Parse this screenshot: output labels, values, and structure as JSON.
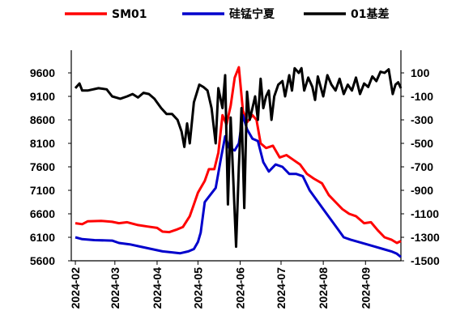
{
  "chart_data": {
    "type": "line",
    "legend_position": "top",
    "x_range": [
      "2024-01-29",
      "2024-09-27"
    ],
    "x_ticks": [
      "2024-02",
      "2024-03",
      "2024-04",
      "2024-05",
      "2024-06",
      "2024-07",
      "2024-08",
      "2024-09"
    ],
    "y_left": {
      "range": [
        5600,
        9600
      ],
      "ticks": [
        5600,
        6100,
        6600,
        7100,
        7600,
        8100,
        8600,
        9100,
        9600
      ]
    },
    "y_right": {
      "range": [
        -1500,
        100
      ],
      "ticks": [
        -1500,
        -1300,
        -1100,
        -900,
        -700,
        -500,
        -300,
        -100,
        100
      ]
    },
    "series": [
      {
        "name": "SM01",
        "color": "#ff0000",
        "axis": "left",
        "points": [
          [
            "2024-02-01",
            6400
          ],
          [
            "2024-02-06",
            6380
          ],
          [
            "2024-02-10",
            6440
          ],
          [
            "2024-02-20",
            6450
          ],
          [
            "2024-02-28",
            6430
          ],
          [
            "2024-03-04",
            6400
          ],
          [
            "2024-03-10",
            6420
          ],
          [
            "2024-03-18",
            6360
          ],
          [
            "2024-03-25",
            6330
          ],
          [
            "2024-04-01",
            6300
          ],
          [
            "2024-04-05",
            6220
          ],
          [
            "2024-04-10",
            6210
          ],
          [
            "2024-04-15",
            6260
          ],
          [
            "2024-04-20",
            6320
          ],
          [
            "2024-04-25",
            6550
          ],
          [
            "2024-04-28",
            6800
          ],
          [
            "2024-05-01",
            7050
          ],
          [
            "2024-05-06",
            7300
          ],
          [
            "2024-05-09",
            7550
          ],
          [
            "2024-05-13",
            7550
          ],
          [
            "2024-05-16",
            7900
          ],
          [
            "2024-05-19",
            8700
          ],
          [
            "2024-05-22",
            8500
          ],
          [
            "2024-05-25",
            8900
          ],
          [
            "2024-05-28",
            9500
          ],
          [
            "2024-05-31",
            9720
          ],
          [
            "2024-06-03",
            8800
          ],
          [
            "2024-06-06",
            8550
          ],
          [
            "2024-06-10",
            8700
          ],
          [
            "2024-06-13",
            8600
          ],
          [
            "2024-06-16",
            8100
          ],
          [
            "2024-06-20",
            8000
          ],
          [
            "2024-06-25",
            8050
          ],
          [
            "2024-06-30",
            7800
          ],
          [
            "2024-07-05",
            7850
          ],
          [
            "2024-07-10",
            7750
          ],
          [
            "2024-07-15",
            7650
          ],
          [
            "2024-07-20",
            7450
          ],
          [
            "2024-07-25",
            7350
          ],
          [
            "2024-07-31",
            7250
          ],
          [
            "2024-08-05",
            7000
          ],
          [
            "2024-08-10",
            6850
          ],
          [
            "2024-08-15",
            6700
          ],
          [
            "2024-08-20",
            6600
          ],
          [
            "2024-08-25",
            6550
          ],
          [
            "2024-08-31",
            6400
          ],
          [
            "2024-09-05",
            6420
          ],
          [
            "2024-09-10",
            6250
          ],
          [
            "2024-09-15",
            6100
          ],
          [
            "2024-09-20",
            6050
          ],
          [
            "2024-09-24",
            5980
          ],
          [
            "2024-09-27",
            6020
          ]
        ]
      },
      {
        "name": "硅锰宁夏",
        "color": "#0000cc",
        "axis": "left",
        "points": [
          [
            "2024-02-01",
            6100
          ],
          [
            "2024-02-06",
            6060
          ],
          [
            "2024-02-15",
            6040
          ],
          [
            "2024-02-28",
            6030
          ],
          [
            "2024-03-04",
            5980
          ],
          [
            "2024-03-12",
            5950
          ],
          [
            "2024-03-20",
            5900
          ],
          [
            "2024-03-28",
            5850
          ],
          [
            "2024-04-05",
            5800
          ],
          [
            "2024-04-12",
            5780
          ],
          [
            "2024-04-18",
            5760
          ],
          [
            "2024-04-24",
            5800
          ],
          [
            "2024-04-28",
            5850
          ],
          [
            "2024-05-01",
            6000
          ],
          [
            "2024-05-03",
            6200
          ],
          [
            "2024-05-06",
            6850
          ],
          [
            "2024-05-10",
            7000
          ],
          [
            "2024-05-14",
            7150
          ],
          [
            "2024-05-18",
            7800
          ],
          [
            "2024-05-21",
            8250
          ],
          [
            "2024-05-24",
            8000
          ],
          [
            "2024-05-28",
            7950
          ],
          [
            "2024-05-31",
            8100
          ],
          [
            "2024-06-03",
            8700
          ],
          [
            "2024-06-06",
            8400
          ],
          [
            "2024-06-10",
            8200
          ],
          [
            "2024-06-14",
            8150
          ],
          [
            "2024-06-18",
            7700
          ],
          [
            "2024-06-22",
            7500
          ],
          [
            "2024-06-27",
            7650
          ],
          [
            "2024-07-02",
            7600
          ],
          [
            "2024-07-07",
            7450
          ],
          [
            "2024-07-12",
            7450
          ],
          [
            "2024-07-17",
            7400
          ],
          [
            "2024-07-22",
            7100
          ],
          [
            "2024-07-27",
            6900
          ],
          [
            "2024-08-01",
            6700
          ],
          [
            "2024-08-06",
            6500
          ],
          [
            "2024-08-11",
            6300
          ],
          [
            "2024-08-16",
            6100
          ],
          [
            "2024-08-21",
            6050
          ],
          [
            "2024-08-27",
            6000
          ],
          [
            "2024-09-02",
            5950
          ],
          [
            "2024-09-08",
            5900
          ],
          [
            "2024-09-14",
            5850
          ],
          [
            "2024-09-20",
            5800
          ],
          [
            "2024-09-24",
            5750
          ],
          [
            "2024-09-27",
            5680
          ]
        ]
      },
      {
        "name": "01基差",
        "color": "#000000",
        "axis": "right",
        "points": [
          [
            "2024-02-01",
            -30
          ],
          [
            "2024-02-04",
            10
          ],
          [
            "2024-02-06",
            -50
          ],
          [
            "2024-02-10",
            -50
          ],
          [
            "2024-02-18",
            -30
          ],
          [
            "2024-02-24",
            -40
          ],
          [
            "2024-02-28",
            -100
          ],
          [
            "2024-03-05",
            -120
          ],
          [
            "2024-03-10",
            -100
          ],
          [
            "2024-03-14",
            -80
          ],
          [
            "2024-03-18",
            -110
          ],
          [
            "2024-03-22",
            -70
          ],
          [
            "2024-03-26",
            -80
          ],
          [
            "2024-03-30",
            -120
          ],
          [
            "2024-04-04",
            -200
          ],
          [
            "2024-04-08",
            -250
          ],
          [
            "2024-04-12",
            -250
          ],
          [
            "2024-04-16",
            -300
          ],
          [
            "2024-04-19",
            -400
          ],
          [
            "2024-04-21",
            -530
          ],
          [
            "2024-04-23",
            -330
          ],
          [
            "2024-04-25",
            -500
          ],
          [
            "2024-04-28",
            -150
          ],
          [
            "2024-05-02",
            0
          ],
          [
            "2024-05-05",
            -20
          ],
          [
            "2024-05-08",
            -50
          ],
          [
            "2024-05-11",
            -200
          ],
          [
            "2024-05-14",
            -500
          ],
          [
            "2024-05-16",
            -30
          ],
          [
            "2024-05-19",
            -200
          ],
          [
            "2024-05-21",
            80
          ],
          [
            "2024-05-23",
            -1020
          ],
          [
            "2024-05-25",
            -280
          ],
          [
            "2024-05-27",
            -820
          ],
          [
            "2024-05-29",
            -1380
          ],
          [
            "2024-05-31",
            -700
          ],
          [
            "2024-06-02",
            -200
          ],
          [
            "2024-06-04",
            -1050
          ],
          [
            "2024-06-06",
            -60
          ],
          [
            "2024-06-08",
            -300
          ],
          [
            "2024-06-10",
            -200
          ],
          [
            "2024-06-12",
            -100
          ],
          [
            "2024-06-14",
            -300
          ],
          [
            "2024-06-16",
            50
          ],
          [
            "2024-06-18",
            -200
          ],
          [
            "2024-06-20",
            -100
          ],
          [
            "2024-06-22",
            -50
          ],
          [
            "2024-06-24",
            -300
          ],
          [
            "2024-06-26",
            -100
          ],
          [
            "2024-06-29",
            0
          ],
          [
            "2024-07-02",
            30
          ],
          [
            "2024-07-04",
            -100
          ],
          [
            "2024-07-07",
            80
          ],
          [
            "2024-07-09",
            -50
          ],
          [
            "2024-07-11",
            140
          ],
          [
            "2024-07-14",
            100
          ],
          [
            "2024-07-16",
            140
          ],
          [
            "2024-07-18",
            -50
          ],
          [
            "2024-07-21",
            60
          ],
          [
            "2024-07-24",
            -20
          ],
          [
            "2024-07-26",
            -130
          ],
          [
            "2024-07-28",
            70
          ],
          [
            "2024-08-01",
            -100
          ],
          [
            "2024-08-04",
            80
          ],
          [
            "2024-08-07",
            0
          ],
          [
            "2024-08-10",
            -50
          ],
          [
            "2024-08-13",
            50
          ],
          [
            "2024-08-16",
            -80
          ],
          [
            "2024-08-19",
            0
          ],
          [
            "2024-08-22",
            -50
          ],
          [
            "2024-08-25",
            60
          ],
          [
            "2024-08-28",
            -80
          ],
          [
            "2024-08-31",
            10
          ],
          [
            "2024-09-03",
            -20
          ],
          [
            "2024-09-06",
            70
          ],
          [
            "2024-09-09",
            30
          ],
          [
            "2024-09-12",
            110
          ],
          [
            "2024-09-15",
            100
          ],
          [
            "2024-09-18",
            130
          ],
          [
            "2024-09-21",
            -80
          ],
          [
            "2024-09-23",
            0
          ],
          [
            "2024-09-25",
            20
          ],
          [
            "2024-09-27",
            -30
          ]
        ]
      }
    ]
  }
}
